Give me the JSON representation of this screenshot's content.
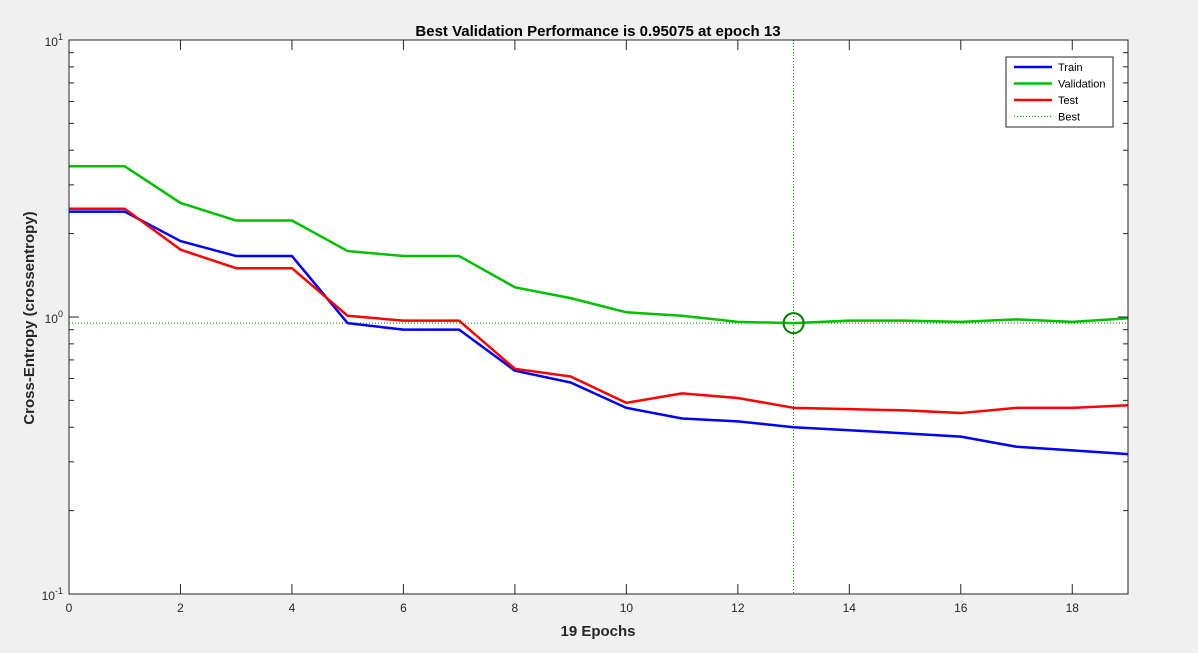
{
  "chart_data": {
    "type": "line",
    "title": "Best Validation Performance is 0.95075 at epoch 13",
    "xlabel": "19 Epochs",
    "ylabel": "Cross-Entropy  (crossentropy)",
    "xlim": [
      0,
      19
    ],
    "ylim": [
      0.1,
      10
    ],
    "yscale": "log",
    "grid": false,
    "legend_position": "top-right",
    "x_ticks": [
      0,
      2,
      4,
      6,
      8,
      10,
      12,
      14,
      16,
      18
    ],
    "y_ticks": [
      {
        "base": "10",
        "exp": "-1",
        "value": 0.1
      },
      {
        "base": "10",
        "exp": "0",
        "value": 1
      },
      {
        "base": "10",
        "exp": "1",
        "value": 10
      }
    ],
    "x": [
      0,
      1,
      2,
      3,
      4,
      5,
      6,
      7,
      8,
      9,
      10,
      11,
      12,
      13,
      14,
      15,
      16,
      17,
      18,
      19
    ],
    "series": [
      {
        "name": "Train",
        "color": "#0000ff",
        "values": [
          2.4,
          2.4,
          1.88,
          1.66,
          1.66,
          0.95,
          0.9,
          0.9,
          0.64,
          0.58,
          0.47,
          0.43,
          0.42,
          0.4,
          0.39,
          0.38,
          0.37,
          0.34,
          0.33,
          0.32
        ]
      },
      {
        "name": "Validation",
        "color": "#00c000",
        "values": [
          3.5,
          3.5,
          2.58,
          2.23,
          2.23,
          1.73,
          1.66,
          1.66,
          1.28,
          1.17,
          1.04,
          1.01,
          0.96,
          0.95075,
          0.97,
          0.97,
          0.96,
          0.98,
          0.96,
          0.99
        ]
      },
      {
        "name": "Test",
        "color": "#ff0000",
        "values": [
          2.46,
          2.46,
          1.75,
          1.5,
          1.5,
          1.01,
          0.97,
          0.97,
          0.65,
          0.61,
          0.49,
          0.53,
          0.51,
          0.47,
          0.465,
          0.46,
          0.45,
          0.47,
          0.47,
          0.48
        ]
      }
    ],
    "best": {
      "name": "Best",
      "color": "#008000",
      "epoch": 13,
      "value": 0.95075
    }
  }
}
